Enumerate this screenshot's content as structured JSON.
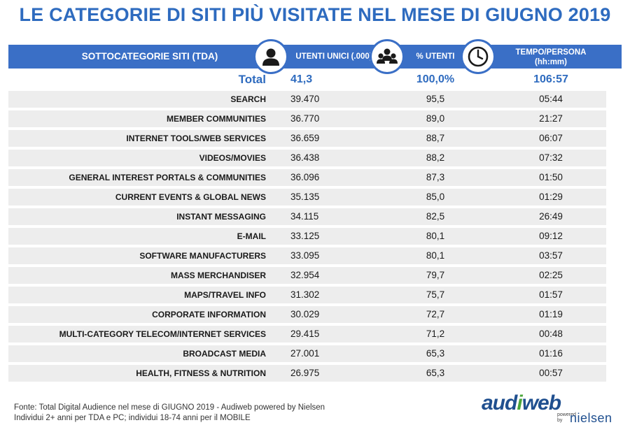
{
  "title": "LE CATEGORIE DI SITI PIÙ VISITATE NEL MESE DI GIUGNO 2019",
  "header": {
    "category": "SOTTOCATEGORIE SITI  (TDA)",
    "users": "UTENTI UNICI (.000)",
    "pct": "% UTENTI",
    "time_line1": "TEMPO/PERSONA",
    "time_line2": "(hh:mm)"
  },
  "icons": [
    "user-icon",
    "group-icon",
    "clock-icon"
  ],
  "colors": {
    "accent": "#3a6fc6",
    "title": "#2e6bbf",
    "row_shade": "#ededed"
  },
  "chart_data": {
    "type": "table",
    "title": "LE CATEGORIE DI SITI PIÙ VISITATE NEL MESE DI GIUGNO 2019",
    "columns": [
      "SOTTOCATEGORIE SITI  (TDA)",
      "UTENTI UNICI (.000)",
      "% UTENTI",
      "TEMPO/PERSONA (hh:mm)"
    ],
    "total": {
      "category": "Total",
      "users": "41,3",
      "pct": "100,0%",
      "time": "106:57"
    },
    "rows": [
      {
        "category": "SEARCH",
        "users": "39.470",
        "pct": "95,5",
        "time": "05:44"
      },
      {
        "category": "MEMBER COMMUNITIES",
        "users": "36.770",
        "pct": "89,0",
        "time": "21:27"
      },
      {
        "category": "INTERNET TOOLS/WEB SERVICES",
        "users": "36.659",
        "pct": "88,7",
        "time": "06:07"
      },
      {
        "category": "VIDEOS/MOVIES",
        "users": "36.438",
        "pct": "88,2",
        "time": "07:32"
      },
      {
        "category": "GENERAL INTEREST PORTALS & COMMUNITIES",
        "users": "36.096",
        "pct": "87,3",
        "time": "01:50"
      },
      {
        "category": "CURRENT EVENTS & GLOBAL NEWS",
        "users": "35.135",
        "pct": "85,0",
        "time": "01:29"
      },
      {
        "category": "INSTANT MESSAGING",
        "users": "34.115",
        "pct": "82,5",
        "time": "26:49"
      },
      {
        "category": "E-MAIL",
        "users": "33.125",
        "pct": "80,1",
        "time": "09:12"
      },
      {
        "category": "SOFTWARE MANUFACTURERS",
        "users": "33.095",
        "pct": "80,1",
        "time": "03:57"
      },
      {
        "category": "MASS MERCHANDISER",
        "users": "32.954",
        "pct": "79,7",
        "time": "02:25"
      },
      {
        "category": "MAPS/TRAVEL INFO",
        "users": "31.302",
        "pct": "75,7",
        "time": "01:57"
      },
      {
        "category": "CORPORATE INFORMATION",
        "users": "30.029",
        "pct": "72,7",
        "time": "01:19"
      },
      {
        "category": "MULTI-CATEGORY TELECOM/INTERNET SERVICES",
        "users": "29.415",
        "pct": "71,2",
        "time": "00:48"
      },
      {
        "category": "BROADCAST MEDIA",
        "users": "27.001",
        "pct": "65,3",
        "time": "01:16"
      },
      {
        "category": "HEALTH, FITNESS & NUTRITION",
        "users": "26.975",
        "pct": "65,3",
        "time": "00:57"
      }
    ]
  },
  "footer": {
    "line1": "Fonte: Total Digital Audience nel mese di GIUGNO 2019 - Audiweb powered by Nielsen",
    "line2": "Individui 2+ anni per TDA e PC; individui 18-74 anni per il MOBILE"
  },
  "logo": {
    "part1": "aud",
    "part2": "i",
    "part3": "web",
    "powered": "powered",
    "by": "by",
    "nielsen": "nielsen"
  }
}
